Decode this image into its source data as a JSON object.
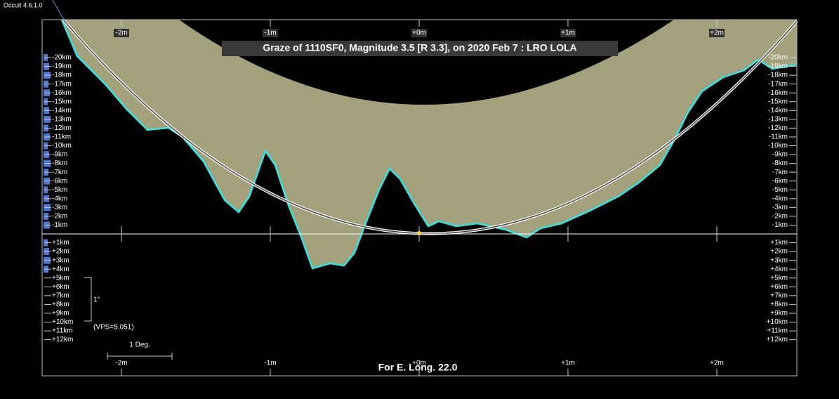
{
  "window_title": "Occult 4.6.1.0",
  "title": "Graze of  1110SF0,  Magnitude 3.5 [R 3.3],  on 2020 Feb  7  :  LRO LOLA",
  "top_axis_labels": [
    "-2m",
    "-1m",
    "+0m",
    "+1m",
    "+2m"
  ],
  "bottom_axis_labels": [
    "-2m",
    "-1m",
    "+0m",
    "+1m",
    "+2m"
  ],
  "left_scale_labels": [
    "-20km",
    "-19km",
    "-18km",
    "-17km",
    "-16km",
    "-15km",
    "-14km",
    "-13km",
    "-12km",
    "-11km",
    "-10km",
    "-9km",
    "-8km",
    "-7km",
    "-6km",
    "-5km",
    "-4km",
    "-3km",
    "-2km",
    "-1km",
    "+1km",
    "+2km",
    "+3km",
    "+4km",
    "+5km",
    "+6km",
    "+7km",
    "+8km",
    "+9km",
    "+10km",
    "+11km",
    "+12km"
  ],
  "right_scale_labels": [
    "-20km",
    "-19km",
    "-18km",
    "-17km",
    "-16km",
    "-15km",
    "-14km",
    "-13km",
    "-12km",
    "-11km",
    "-10km",
    "-9km",
    "-8km",
    "-7km",
    "-6km",
    "-5km",
    "-4km",
    "-3km",
    "-2km",
    "-1km",
    "+1km",
    "+2km",
    "+3km",
    "+4km",
    "+5km",
    "+6km",
    "+7km",
    "+8km",
    "+9km",
    "+10km",
    "+11km",
    "+12km"
  ],
  "scale_bar_label": "1\"",
  "vps_label": "(VPS=5.051)",
  "degree_label": "1 Deg.",
  "footer": "For E. Long. 22.0"
}
